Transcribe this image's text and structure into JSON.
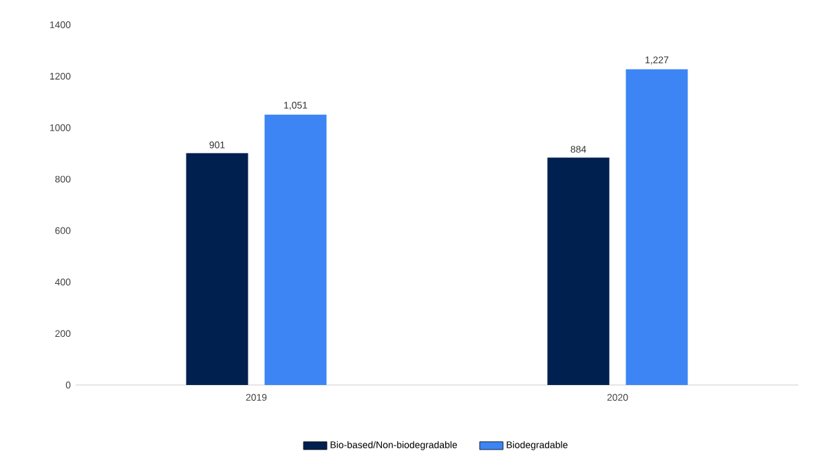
{
  "chart_data": {
    "type": "bar",
    "categories": [
      "2019",
      "2020"
    ],
    "series": [
      {
        "name": "Bio-based/Non-biodegradable",
        "color": "#002050",
        "values": [
          901,
          884
        ],
        "value_labels": [
          "901",
          "884"
        ]
      },
      {
        "name": "Biodegradable",
        "color": "#3d85f5",
        "values": [
          1051,
          1227
        ],
        "value_labels": [
          "1,051",
          "1,227"
        ]
      }
    ],
    "ylim": [
      0,
      1400
    ],
    "yticks": [
      0,
      200,
      400,
      600,
      800,
      1000,
      1200,
      1400
    ],
    "legend": "bottom"
  }
}
